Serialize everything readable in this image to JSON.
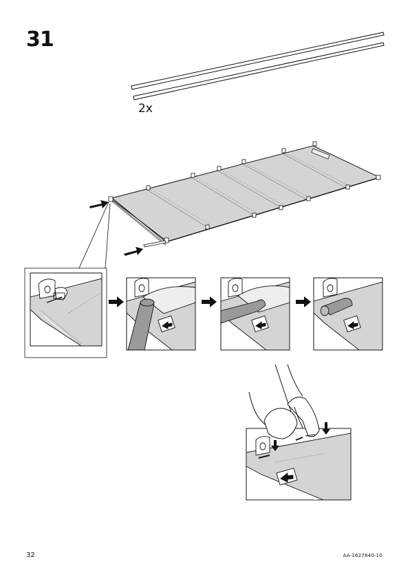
{
  "step_number": "31",
  "rods": {
    "quantity_label": "2x"
  },
  "footer": {
    "page_number": "32",
    "document_id": "AA-1627840-10"
  },
  "colors": {
    "fabric": "#d4d4d4",
    "fabric_dark": "#bdbdbd",
    "rod": "#9a9a9a",
    "line": "#111111",
    "background": "#ffffff"
  },
  "icons": [
    "arrow-right-icon",
    "label-arrow-icon"
  ]
}
